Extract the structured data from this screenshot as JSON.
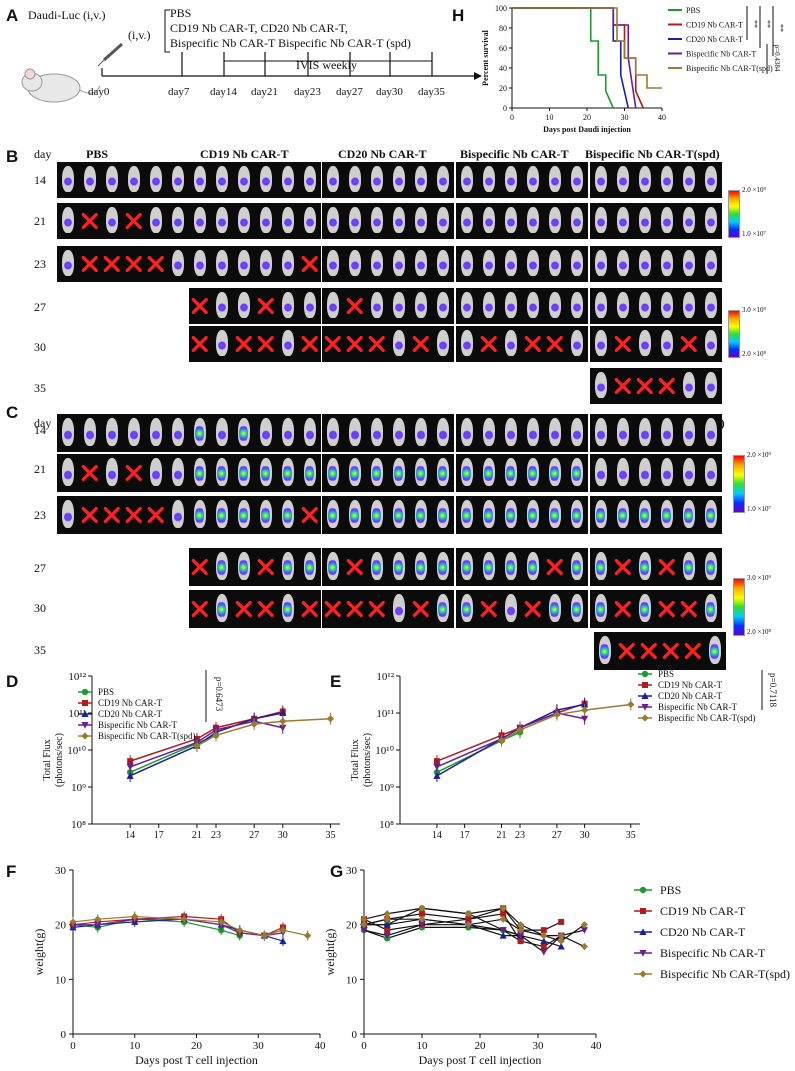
{
  "panel_labels": {
    "A": "A",
    "B": "B",
    "C": "C",
    "D": "D",
    "E": "E",
    "F": "F",
    "G": "G",
    "H": "H"
  },
  "panelA": {
    "inoc": "Daudi-Luc (i,v.)",
    "iv": "(i,v.)",
    "groups_line1": "PBS",
    "groups_line2": "CD19 Nb CAR-T, CD20 Nb CAR-T,",
    "groups_line3": "Bispecific Nb CAR-T Bispecific Nb CAR-T (spd)",
    "ivis": "IVIS weekly",
    "days": [
      "day0",
      "day7",
      "day14",
      "day21",
      "day23",
      "day27",
      "day30",
      "day35"
    ]
  },
  "imaging": {
    "day_header": "day",
    "groups_B": [
      "PBS",
      "CD19 Nb CAR-T",
      "CD20 Nb CAR-T",
      "Bispecific Nb CAR-T",
      "Bispecific Nb CAR-T(spd)"
    ],
    "groups_C": [
      "PBS",
      "CD19 Nb CAR-T",
      "CD20 Nb CAR-T",
      "Bispecific Nb CAR-T",
      "Bispecific Nb CAR-T(spd)"
    ],
    "days": [
      "14",
      "21",
      "23",
      "27",
      "30",
      "35"
    ],
    "scale1_top": "2.0 ×10⁹",
    "scale1_bot": "1.0 ×10⁷",
    "scale2_top": "3.0 ×10⁹",
    "scale2_bot": "2.0 ×10⁸"
  },
  "colors": {
    "PBS": "#1e9a2c",
    "CD19": "#b01c1c",
    "CD20": "#1a1f9a",
    "Bis": "#6a1f8e",
    "Spd": "#9a7a30"
  },
  "chart_data": [
    {
      "id": "H",
      "type": "line",
      "xlabel": "Days post Daudi injection",
      "ylabel": "Percent survival",
      "xlim": [
        0,
        40
      ],
      "ylim": [
        0,
        100
      ],
      "xticks": [
        0,
        10,
        20,
        30,
        40
      ],
      "yticks": [
        0,
        20,
        40,
        60,
        80,
        100
      ],
      "legend": [
        "PBS",
        "CD19 Nb CAR-T",
        "CD20 Nb CAR-T",
        "Bispecific Nb CAR-T",
        "Bispecific Nb CAR-T(spd)"
      ],
      "series": [
        {
          "name": "PBS",
          "x": [
            0,
            21,
            21,
            23,
            23,
            25,
            25,
            27
          ],
          "y": [
            100,
            100,
            67,
            67,
            33,
            33,
            17,
            0
          ]
        },
        {
          "name": "CD19 Nb CAR-T",
          "x": [
            0,
            27,
            27,
            30,
            30,
            33,
            33,
            35
          ],
          "y": [
            100,
            100,
            83,
            83,
            50,
            50,
            17,
            0
          ]
        },
        {
          "name": "CD20 Nb CAR-T",
          "x": [
            0,
            27,
            27,
            29,
            29,
            31
          ],
          "y": [
            100,
            100,
            67,
            67,
            33,
            0
          ]
        },
        {
          "name": "Bispecific Nb CAR-T",
          "x": [
            0,
            27,
            27,
            31,
            31,
            33
          ],
          "y": [
            100,
            100,
            83,
            83,
            50,
            0
          ]
        },
        {
          "name": "Bispecific Nb CAR-T(spd)",
          "x": [
            0,
            28,
            28,
            30,
            30,
            33,
            33,
            36,
            36,
            40
          ],
          "y": [
            100,
            100,
            67,
            67,
            50,
            50,
            33,
            33,
            20,
            20
          ]
        }
      ],
      "annotations": [
        "**",
        "**",
        "**",
        "p=0.4384"
      ]
    },
    {
      "id": "D",
      "type": "line",
      "ylabel": "Total Flux (photons/sec)",
      "xlabel": "Days",
      "yscale": "log",
      "ylim": [
        100000000.0,
        1000000000000.0
      ],
      "yticks": [
        "10⁸",
        "10⁹",
        "10¹⁰",
        "10¹¹",
        "10¹²"
      ],
      "xticks": [
        14,
        17,
        21,
        23,
        27,
        30,
        35
      ],
      "xlim": [
        10,
        36
      ],
      "legend": [
        "PBS",
        "CD19 Nb CAR-T",
        "CD20 Nb CAR-T",
        "Bispecific Nb CAR-T",
        "Bispecific Nb CAR-T(spd)"
      ],
      "annotation": "p=0.6473",
      "series": [
        {
          "name": "PBS",
          "x": [
            14,
            21,
            23
          ],
          "y": [
            2500000000.0,
            15000000000.0,
            25000000000.0
          ]
        },
        {
          "name": "CD19 Nb CAR-T",
          "x": [
            14,
            21,
            23,
            27,
            30
          ],
          "y": [
            5000000000.0,
            20000000000.0,
            40000000000.0,
            70000000000.0,
            110000000000.0
          ]
        },
        {
          "name": "CD20 Nb CAR-T",
          "x": [
            14,
            21,
            23,
            27,
            30
          ],
          "y": [
            2000000000.0,
            13000000000.0,
            30000000000.0,
            70000000000.0,
            100000000000.0
          ]
        },
        {
          "name": "Bispecific Nb CAR-T",
          "x": [
            14,
            21,
            23,
            27,
            30
          ],
          "y": [
            3500000000.0,
            16000000000.0,
            35000000000.0,
            60000000000.0,
            40000000000.0
          ]
        },
        {
          "name": "Bispecific Nb CAR-T(spd)",
          "x": [
            21,
            23,
            27,
            30,
            35
          ],
          "y": [
            13000000000.0,
            25000000000.0,
            50000000000.0,
            60000000000.0,
            70000000000.0
          ]
        }
      ]
    },
    {
      "id": "E",
      "type": "line",
      "ylabel": "Total Flux (photons/sec)",
      "xlabel": "Days",
      "yscale": "log",
      "ylim": [
        100000000.0,
        1000000000000.0
      ],
      "yticks": [
        "10⁸",
        "10⁹",
        "10¹⁰",
        "10¹¹",
        "10¹²"
      ],
      "xticks": [
        14,
        17,
        21,
        23,
        27,
        30,
        35
      ],
      "xlim": [
        10,
        36
      ],
      "legend": [
        "PBS",
        "CD19 Nb CAR-T",
        "CD20 Nb CAR-T",
        "Bispecific Nb CAR-T",
        "Bispecific Nb CAR-T(spd)"
      ],
      "annotation": "p=0.7118",
      "series": [
        {
          "name": "PBS",
          "x": [
            14,
            21,
            23
          ],
          "y": [
            2500000000.0,
            18000000000.0,
            30000000000.0
          ]
        },
        {
          "name": "CD19 Nb CAR-T",
          "x": [
            14,
            21,
            23,
            27,
            30
          ],
          "y": [
            5000000000.0,
            25000000000.0,
            40000000000.0,
            100000000000.0,
            180000000000.0
          ]
        },
        {
          "name": "CD20 Nb CAR-T",
          "x": [
            14,
            21,
            23,
            27,
            30
          ],
          "y": [
            2000000000.0,
            20000000000.0,
            40000000000.0,
            120000000000.0,
            170000000000.0
          ]
        },
        {
          "name": "Bispecific Nb CAR-T",
          "x": [
            14,
            21,
            23,
            27,
            30
          ],
          "y": [
            3500000000.0,
            20000000000.0,
            40000000000.0,
            100000000000.0,
            70000000000.0
          ]
        },
        {
          "name": "Bispecific Nb CAR-T(spd)",
          "x": [
            21,
            23,
            27,
            30,
            35
          ],
          "y": [
            18000000000.0,
            35000000000.0,
            90000000000.0,
            120000000000.0,
            170000000000.0
          ]
        }
      ]
    },
    {
      "id": "F",
      "type": "line",
      "ylabel": "weight(g)",
      "xlabel": "Days post T cell injection",
      "xlim": [
        0,
        40
      ],
      "ylim": [
        0,
        30
      ],
      "xticks": [
        0,
        10,
        20,
        30,
        40
      ],
      "yticks": [
        0,
        10,
        20,
        30
      ],
      "series": [
        {
          "name": "PBS",
          "x": [
            0,
            4,
            10,
            18,
            24,
            27
          ],
          "y": [
            20,
            19.5,
            21,
            20.5,
            19,
            18
          ]
        },
        {
          "name": "CD19 Nb CAR-T",
          "x": [
            0,
            4,
            10,
            18,
            24,
            27,
            31,
            34
          ],
          "y": [
            20,
            20.5,
            21,
            21.5,
            21,
            18.5,
            18,
            19.5
          ]
        },
        {
          "name": "CD20 Nb CAR-T",
          "x": [
            0,
            4,
            10,
            18,
            24,
            27,
            31,
            34
          ],
          "y": [
            19.5,
            20,
            20.5,
            21,
            20,
            19,
            18,
            17
          ]
        },
        {
          "name": "Bispecific Nb CAR-T",
          "x": [
            0,
            4,
            10,
            18,
            24,
            27,
            31,
            34
          ],
          "y": [
            20,
            20,
            21,
            21,
            20,
            18.5,
            18,
            18.5
          ]
        },
        {
          "name": "Bispecific Nb CAR-T(spd)",
          "x": [
            0,
            4,
            10,
            18,
            24,
            27,
            31,
            34,
            38
          ],
          "y": [
            20.5,
            21,
            21.5,
            21,
            20.5,
            19,
            18,
            19,
            18
          ]
        }
      ]
    },
    {
      "id": "G",
      "type": "line",
      "ylabel": "weight(g)",
      "xlabel": "Days post T cell injection",
      "xlim": [
        0,
        40
      ],
      "ylim": [
        0,
        30
      ],
      "xticks": [
        0,
        10,
        20,
        30,
        40
      ],
      "yticks": [
        0,
        10,
        20,
        30
      ],
      "legend": [
        "PBS",
        "CD19 Nb CAR-T",
        "CD20 Nb CAR-T",
        "Bispecific Nb CAR-T",
        "Bispecific Nb CAR-T(spd)"
      ],
      "series": [
        {
          "name": "PBS",
          "x": [
            0,
            4,
            10,
            18,
            24,
            27
          ],
          "y": [
            19,
            17.5,
            19.5,
            19.5,
            19,
            18
          ]
        },
        {
          "name": "PBS",
          "x": [
            0,
            4,
            10,
            18,
            24,
            27
          ],
          "y": [
            20,
            20,
            23,
            22,
            19,
            17
          ]
        },
        {
          "name": "CD19 Nb CAR-T",
          "x": [
            0,
            4,
            10,
            18,
            24,
            27,
            31,
            34
          ],
          "y": [
            20,
            21,
            22,
            21,
            23,
            19,
            19,
            20.5
          ]
        },
        {
          "name": "CD19 Nb CAR-T",
          "x": [
            0,
            4,
            10,
            18,
            24,
            27,
            31,
            34
          ],
          "y": [
            21,
            19,
            20,
            21,
            22,
            17,
            16,
            18
          ]
        },
        {
          "name": "CD20 Nb CAR-T",
          "x": [
            0,
            4,
            10,
            18,
            24,
            27,
            31,
            34
          ],
          "y": [
            20,
            20,
            21,
            20,
            18,
            18,
            17,
            16
          ]
        },
        {
          "name": "Bispecific Nb CAR-T",
          "x": [
            0,
            4,
            10,
            18,
            24,
            27,
            31,
            34,
            38
          ],
          "y": [
            19,
            18,
            20,
            20,
            19,
            18,
            15,
            18,
            19
          ]
        },
        {
          "name": "Bispecific Nb CAR-T(spd)",
          "x": [
            0,
            4,
            10,
            18,
            24,
            27,
            31,
            34,
            38
          ],
          "y": [
            21,
            22,
            23,
            22,
            23,
            20,
            18,
            17,
            20
          ]
        },
        {
          "name": "Bispecific Nb CAR-T(spd)",
          "x": [
            0,
            4,
            10,
            18,
            24,
            27,
            31,
            34,
            38
          ],
          "y": [
            20,
            21,
            21,
            20,
            21,
            19,
            18,
            18,
            16
          ]
        }
      ]
    }
  ]
}
